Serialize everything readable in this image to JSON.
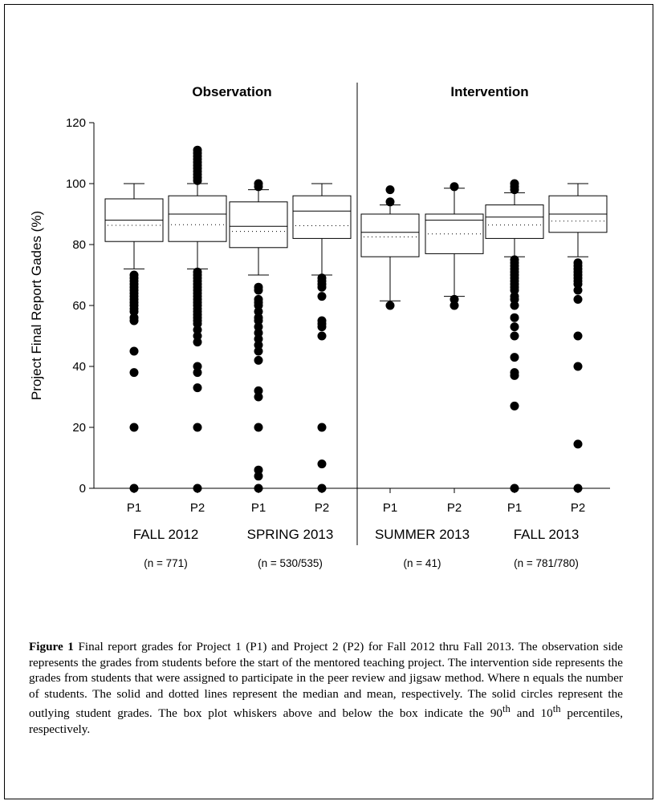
{
  "chart_data": {
    "type": "box",
    "ylabel": "Project Final Report Gades (%)",
    "ylim": [
      0,
      120
    ],
    "yticks": [
      "0",
      "20",
      "40",
      "60",
      "80",
      "100",
      "120"
    ],
    "sections": [
      {
        "title": "Observation"
      },
      {
        "title": "Intervention"
      }
    ],
    "terms": [
      {
        "label": "FALL 2012",
        "n": "(n = 771)"
      },
      {
        "label": "SPRING 2013",
        "n": "(n = 530/535)"
      },
      {
        "label": "SUMMER 2013",
        "n": "(n = 41)"
      },
      {
        "label": "FALL 2013",
        "n": "(n = 781/780)"
      }
    ],
    "boxes": [
      {
        "category": "P1",
        "term": "FALL 2012",
        "p10": 72,
        "q1": 81,
        "median": 88,
        "mean": 86.3,
        "q3": 95,
        "p90": 100,
        "outliers": [
          0,
          20,
          38,
          45,
          55,
          56,
          58,
          59,
          60,
          61,
          62,
          63,
          64,
          65,
          66,
          67,
          68,
          69,
          70
        ]
      },
      {
        "category": "P2",
        "term": "FALL 2012",
        "p10": 72,
        "q1": 81,
        "median": 90,
        "mean": 86.5,
        "q3": 96,
        "p90": 100,
        "outliers": [
          0,
          20,
          33,
          38,
          40,
          48,
          50,
          52,
          54,
          55,
          56,
          57,
          58,
          59,
          60,
          61,
          62,
          63,
          64,
          65,
          66,
          67,
          68,
          69,
          70,
          71,
          101,
          102,
          103,
          104,
          105,
          106,
          107,
          108,
          109,
          110,
          111
        ]
      },
      {
        "category": "P1",
        "term": "SPRING 2013",
        "p10": 70,
        "q1": 79,
        "median": 86,
        "mean": 84.3,
        "q3": 94,
        "p90": 98,
        "outliers": [
          0,
          4,
          6,
          20,
          30,
          32,
          42,
          45,
          47,
          49,
          51,
          53,
          55,
          56,
          58,
          60,
          61,
          62,
          65,
          66,
          99,
          100
        ]
      },
      {
        "category": "P2",
        "term": "SPRING 2013",
        "p10": 70,
        "q1": 82,
        "median": 91,
        "mean": 86.2,
        "q3": 96,
        "p90": 100,
        "outliers": [
          0,
          8,
          20,
          50,
          53,
          54,
          55,
          63,
          66,
          67,
          68,
          69
        ]
      },
      {
        "category": "P1",
        "term": "SUMMER 2013",
        "p10": 61.5,
        "q1": 76,
        "median": 84,
        "mean": 82.5,
        "q3": 90,
        "p90": 93,
        "outliers": [
          60,
          94,
          98
        ]
      },
      {
        "category": "P2",
        "term": "SUMMER 2013",
        "p10": 63,
        "q1": 77,
        "median": 88,
        "mean": 83.5,
        "q3": 90,
        "p90": 98.5,
        "outliers": [
          60,
          62,
          99
        ]
      },
      {
        "category": "P1",
        "term": "FALL 2013",
        "p10": 76,
        "q1": 82,
        "median": 89,
        "mean": 86.4,
        "q3": 93,
        "p90": 97,
        "outliers": [
          0,
          27,
          37,
          38,
          43,
          50,
          53,
          56,
          60,
          62,
          63,
          65,
          66,
          67,
          68,
          69,
          70,
          71,
          72,
          73,
          74,
          75,
          98,
          99,
          100
        ]
      },
      {
        "category": "P2",
        "term": "FALL 2013",
        "p10": 76,
        "q1": 84,
        "median": 90,
        "mean": 87.7,
        "q3": 96,
        "p90": 100,
        "outliers": [
          0,
          14.5,
          40,
          50,
          62,
          65,
          67,
          68,
          69,
          70,
          71,
          72,
          73,
          74
        ]
      }
    ]
  },
  "caption": {
    "label": "Figure 1",
    "text": " Final report grades for Project 1 (P1) and Project 2 (P2) for Fall 2012 thru Fall 2013. The observation side represents the grades from students before the start of the mentored teaching project. The intervention side represents the grades from students that were assigned to participate in the peer review and jigsaw method. Where n equals the number of students. The solid and dotted lines represent the median and mean, respectively. The solid circles represent the outlying student grades. The box plot whiskers above and below the box indicate the 90",
    "sup1": "th",
    "mid": " and 10",
    "sup2": "th",
    "end": " percentiles, respectively."
  }
}
